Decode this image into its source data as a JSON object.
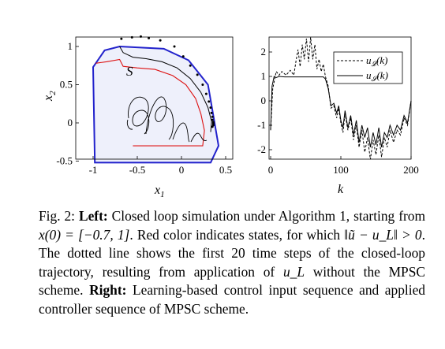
{
  "chart_data": [
    {
      "type": "line",
      "panel": "left",
      "xlabel": "x1",
      "ylabel": "x2",
      "xlim": [
        -1.1,
        0.6
      ],
      "ylim": [
        -0.55,
        1.0
      ],
      "xticks": [
        -1,
        -0.5,
        0,
        0.5
      ],
      "xtick_labels": [
        "-1",
        "-0.5",
        "0",
        "0.5"
      ],
      "yticks": [
        -0.5,
        0,
        0.5,
        1
      ],
      "ytick_labels": [
        "-0.5",
        "0",
        "0.5",
        "1"
      ],
      "set_label": "S",
      "grid": false,
      "safe_set_boundary": [
        [
          -0.98,
          -0.52
        ],
        [
          -1.0,
          0.73
        ],
        [
          -0.87,
          0.95
        ],
        [
          -0.7,
          1.0
        ],
        [
          -0.2,
          0.97
        ],
        [
          0.08,
          0.82
        ],
        [
          0.3,
          0.5
        ],
        [
          0.42,
          -0.3
        ],
        [
          0.33,
          -0.52
        ],
        [
          -0.98,
          -0.52
        ]
      ],
      "trajectory_black": [
        [
          -0.7,
          1.0
        ],
        [
          -0.66,
          0.92
        ],
        [
          -0.55,
          0.86
        ],
        [
          -0.4,
          0.84
        ],
        [
          -0.22,
          0.8
        ],
        [
          -0.05,
          0.72
        ],
        [
          0.1,
          0.58
        ],
        [
          0.22,
          0.4
        ],
        [
          0.3,
          0.2
        ],
        [
          0.34,
          0.02
        ],
        [
          0.33,
          -0.12
        ]
      ],
      "trajectory_red": [
        [
          -0.97,
          0.78
        ],
        [
          -0.85,
          0.8
        ],
        [
          -0.7,
          0.83
        ],
        [
          -0.66,
          0.74
        ],
        [
          -0.5,
          0.72
        ],
        [
          -0.3,
          0.7
        ],
        [
          -0.1,
          0.62
        ],
        [
          0.05,
          0.5
        ],
        [
          0.16,
          0.32
        ],
        [
          0.22,
          0.12
        ],
        [
          0.26,
          -0.1
        ],
        [
          0.24,
          -0.3
        ],
        [
          -0.4,
          -0.3
        ],
        [
          -0.55,
          -0.3
        ]
      ],
      "dotted_trajectory": [
        [
          -0.68,
          1.1
        ],
        [
          -0.56,
          1.12
        ],
        [
          -0.46,
          1.13
        ],
        [
          -0.37,
          1.11
        ],
        [
          -0.24,
          1.08
        ],
        [
          -0.08,
          1.0
        ],
        [
          0.02,
          0.87
        ],
        [
          0.1,
          0.75
        ],
        [
          0.18,
          0.63
        ],
        [
          0.24,
          0.5
        ],
        [
          0.28,
          0.38
        ],
        [
          0.31,
          0.28
        ],
        [
          0.33,
          0.2
        ],
        [
          0.34,
          0.13
        ],
        [
          0.35,
          0.08
        ],
        [
          0.35,
          0.04
        ],
        [
          0.36,
          0.01
        ],
        [
          0.36,
          -0.01
        ],
        [
          0.36,
          -0.03
        ],
        [
          0.35,
          -0.05
        ]
      ]
    },
    {
      "type": "line",
      "panel": "right",
      "xlabel": "k",
      "xlim": [
        0,
        200
      ],
      "ylim": [
        -2.4,
        2.6
      ],
      "xticks": [
        0,
        100,
        200
      ],
      "xtick_labels": [
        "0",
        "100",
        "200"
      ],
      "yticks": [
        -2,
        -1,
        0,
        1,
        2
      ],
      "ytick_labels": [
        "-2",
        "-1",
        "0",
        "1",
        "2"
      ],
      "grid": false,
      "legend": "top-right",
      "series": [
        {
          "name": "u_L(k)",
          "style": "dashed",
          "x": [
            0,
            3,
            8,
            12,
            16,
            22,
            28,
            33,
            36,
            39,
            42,
            45,
            48,
            51,
            54,
            57,
            60,
            63,
            66,
            69,
            72,
            75,
            78,
            82,
            86,
            90,
            94,
            97,
            100,
            103,
            106,
            110,
            114,
            118,
            122,
            126,
            130,
            134,
            138,
            142,
            146,
            150,
            154,
            158,
            162,
            166,
            170,
            175,
            180,
            185,
            190,
            195,
            200
          ],
          "y": [
            -1.2,
            0.5,
            1.2,
            1.05,
            1.2,
            1.05,
            1.25,
            1.05,
            1.6,
            2.1,
            1.4,
            2.3,
            1.7,
            2.55,
            1.6,
            2.6,
            1.7,
            2.3,
            1.3,
            1.7,
            1.2,
            1.5,
            1.0,
            0.6,
            -0.3,
            -0.2,
            -0.7,
            -0.3,
            -0.9,
            -1.3,
            -0.5,
            -1.2,
            -0.7,
            -1.6,
            -1.0,
            -1.9,
            -1.2,
            -2.1,
            -1.5,
            -2.4,
            -1.6,
            -2.2,
            -1.4,
            -2.3,
            -1.5,
            -1.9,
            -1.2,
            -1.7,
            -1.2,
            -1.4,
            -0.7,
            -1.0,
            0.0
          ]
        },
        {
          "name": "u_S(k)",
          "style": "solid",
          "x": [
            0,
            2,
            5,
            8,
            12,
            20,
            40,
            60,
            75,
            78,
            82,
            86,
            90,
            94,
            97,
            100,
            103,
            106,
            110,
            114,
            118,
            122,
            126,
            130,
            134,
            138,
            142,
            146,
            150,
            154,
            158,
            162,
            166,
            170,
            175,
            180,
            185,
            190,
            195,
            200
          ],
          "y": [
            -1.2,
            0.6,
            1.0,
            0.95,
            1.0,
            0.98,
            0.98,
            0.98,
            0.98,
            0.9,
            0.5,
            -0.2,
            -0.1,
            -0.5,
            -0.2,
            -0.8,
            -1.1,
            -0.4,
            -1.1,
            -0.6,
            -1.4,
            -0.8,
            -1.7,
            -1.0,
            -1.5,
            -1.1,
            -1.9,
            -1.3,
            -1.8,
            -1.1,
            -1.9,
            -1.3,
            -1.5,
            -1.0,
            -1.4,
            -1.0,
            -1.2,
            -0.6,
            -0.9,
            0.0
          ]
        }
      ]
    }
  ],
  "caption": {
    "figure_label": "Fig. 2:",
    "left_label": "Left:",
    "text_1": " Closed loop simulation under Algorithm 1, starting from ",
    "math_1": "x(0) = [−0.7, 1]",
    "text_2": ". Red color indicates states, for which ",
    "math_2": "‖ũ − u_L‖ > 0",
    "text_3": ". The dotted line shows the first 20 time steps of the closed-loop trajectory, resulting from application of ",
    "math_3": "u_L",
    "text_4": " without the MPSC scheme. ",
    "right_label": "Right:",
    "text_5": " Learning-based control input sequence and applied controller sequence of MPSC scheme."
  },
  "colors": {
    "set_boundary": "#2222cc",
    "set_fill": "#eef0fb",
    "red_trajectory": "#dd1111",
    "black": "#000000"
  }
}
